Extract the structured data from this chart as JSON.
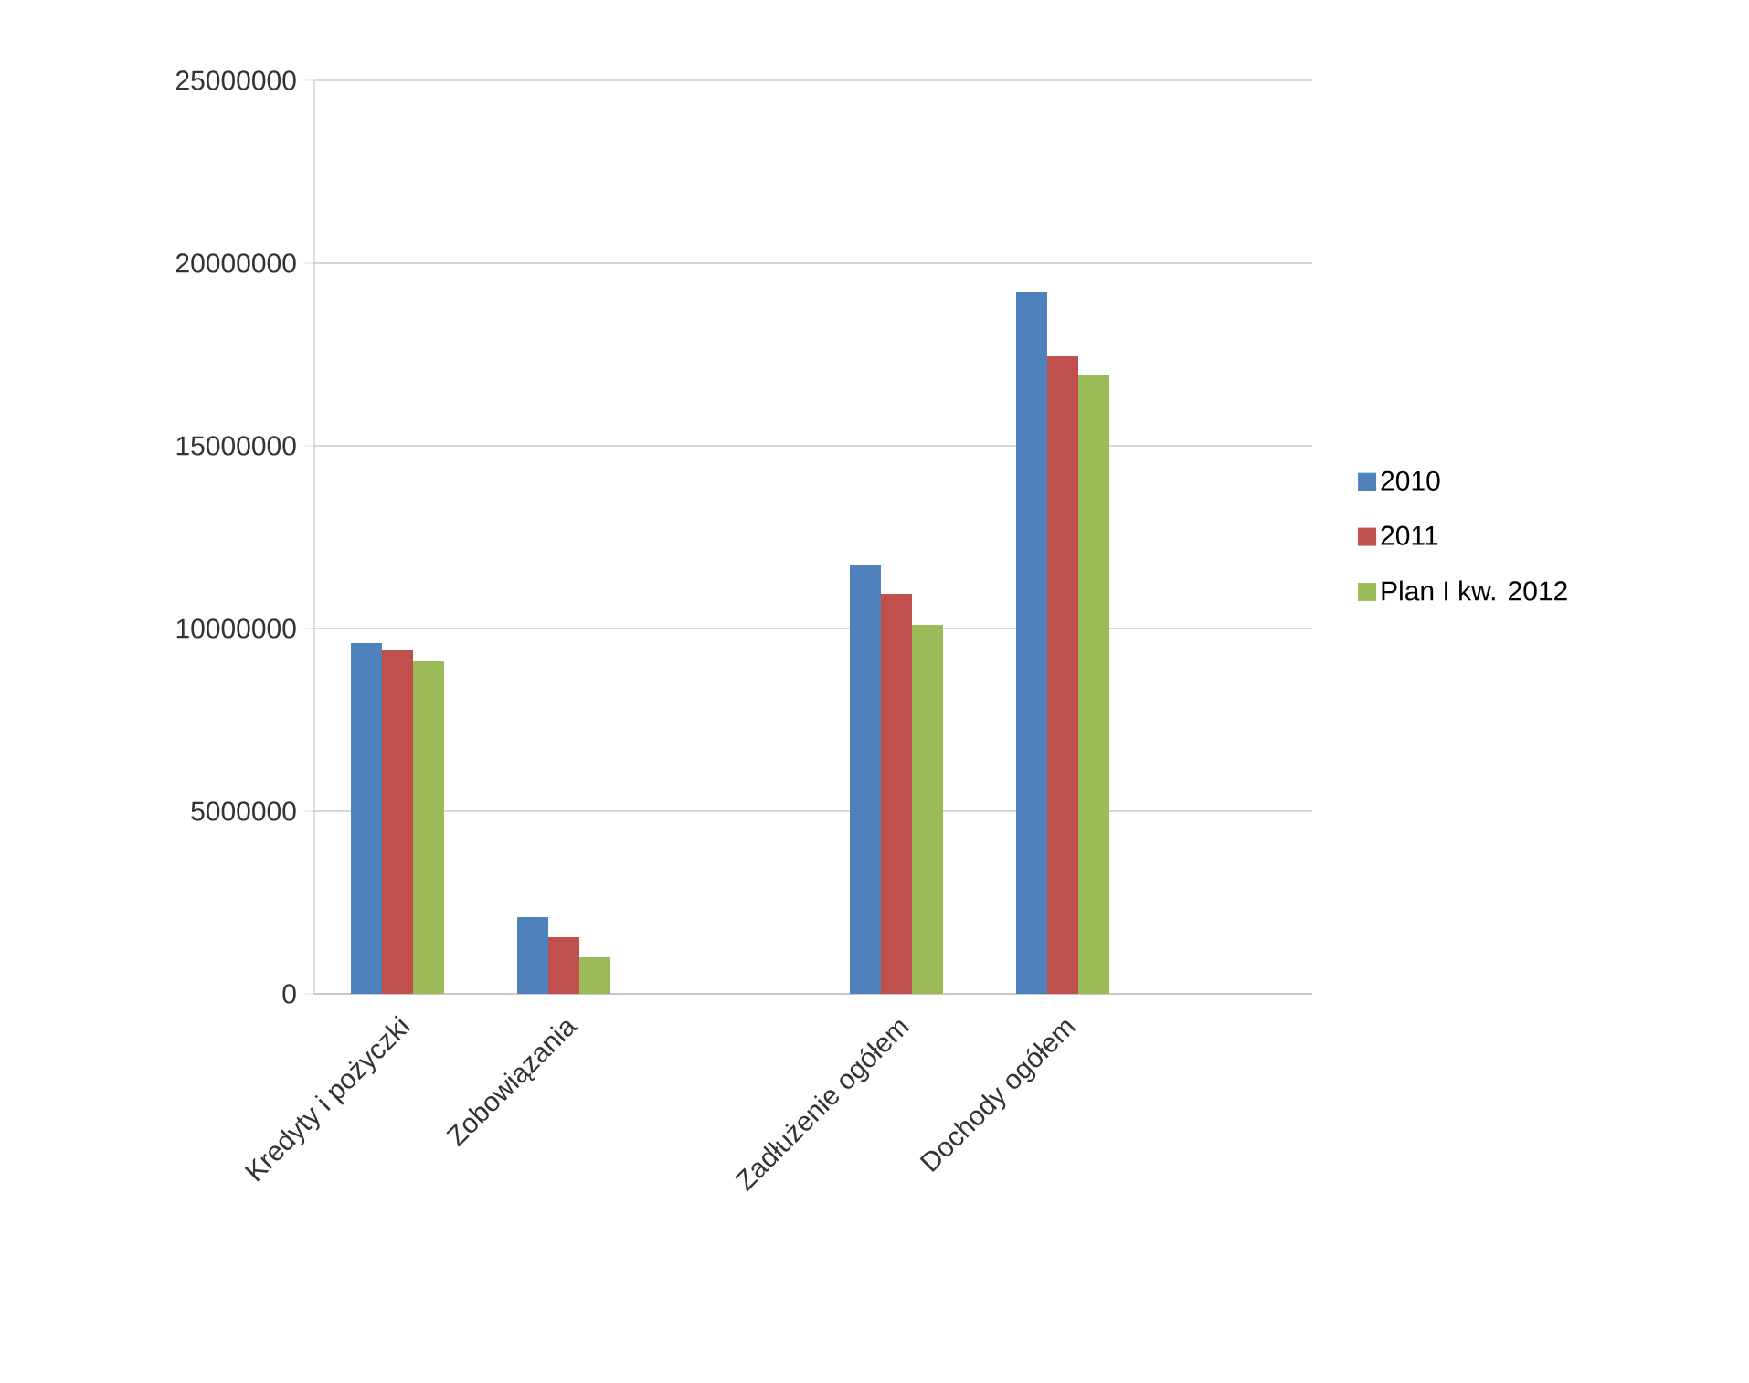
{
  "chart_data": {
    "type": "bar",
    "categories": [
      "Kredyty i pożyczki",
      "Zobowiązania",
      null,
      "Zadłużenie ogółem",
      "Dochody ogółem",
      null
    ],
    "series": [
      {
        "name": "2010",
        "color": "#4f81bd",
        "values": [
          9600000,
          2100000,
          null,
          11750000,
          19200000,
          null
        ]
      },
      {
        "name": "2011",
        "color": "#c0504d",
        "values": [
          9400000,
          1550000,
          null,
          10950000,
          17450000,
          null
        ]
      },
      {
        "name": "Plan I kw. 2012",
        "color": "#9bbb59",
        "values": [
          9100000,
          1000000,
          null,
          10100000,
          16950000,
          null
        ]
      }
    ],
    "ylim": [
      0,
      25000000
    ],
    "yticks": [
      0,
      5000000,
      10000000,
      15000000,
      20000000,
      25000000
    ],
    "grid": "y",
    "legend": "right"
  }
}
